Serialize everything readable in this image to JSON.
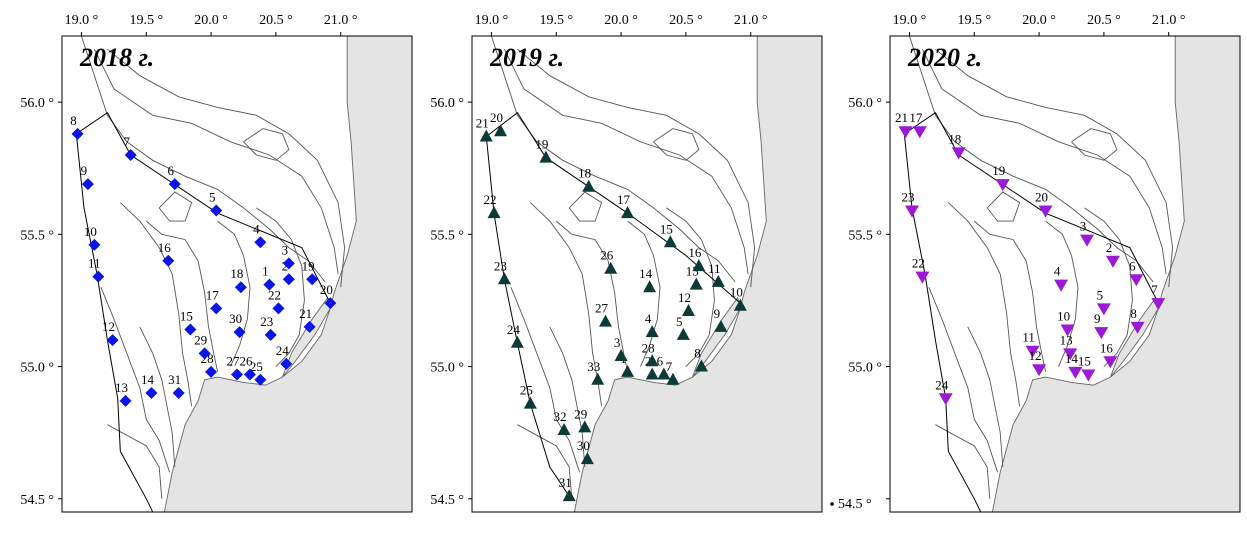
{
  "figure": {
    "stray_tick_label": "54.5 °"
  },
  "colors": {
    "2018": "#0a14e6",
    "2019": "#0d3a36",
    "2020": "#9a1ad6",
    "land": "#e4e4e4"
  },
  "panels": [
    {
      "id": "p2018",
      "year_label": "2018 г.",
      "marker": "diamond",
      "color": "#0a14e6",
      "x_ticks": [
        "19.0 °",
        "19.5 °",
        "20.0 °",
        "20.5 °",
        "21.0 °"
      ],
      "y_ticks": [
        "56.0 °",
        "55.5 °",
        "55.0 °",
        "54.5 °"
      ],
      "stations": [
        {
          "n": "1",
          "lon": 20.45,
          "lat": 55.31
        },
        {
          "n": "2",
          "lon": 20.6,
          "lat": 55.33
        },
        {
          "n": "3",
          "lon": 20.6,
          "lat": 55.39
        },
        {
          "n": "4",
          "lon": 20.38,
          "lat": 55.47
        },
        {
          "n": "5",
          "lon": 20.04,
          "lat": 55.59
        },
        {
          "n": "6",
          "lon": 19.72,
          "lat": 55.69
        },
        {
          "n": "7",
          "lon": 19.38,
          "lat": 55.8
        },
        {
          "n": "8",
          "lon": 18.97,
          "lat": 55.88
        },
        {
          "n": "9",
          "lon": 19.05,
          "lat": 55.69
        },
        {
          "n": "10",
          "lon": 19.1,
          "lat": 55.46
        },
        {
          "n": "11",
          "lon": 19.13,
          "lat": 55.34
        },
        {
          "n": "12",
          "lon": 19.24,
          "lat": 55.1
        },
        {
          "n": "13",
          "lon": 19.34,
          "lat": 54.87
        },
        {
          "n": "14",
          "lon": 19.54,
          "lat": 54.9
        },
        {
          "n": "15",
          "lon": 19.84,
          "lat": 55.14
        },
        {
          "n": "16",
          "lon": 19.67,
          "lat": 55.4
        },
        {
          "n": "17",
          "lon": 20.04,
          "lat": 55.22
        },
        {
          "n": "18",
          "lon": 20.23,
          "lat": 55.3
        },
        {
          "n": "19",
          "lon": 20.78,
          "lat": 55.33
        },
        {
          "n": "20",
          "lon": 20.92,
          "lat": 55.24
        },
        {
          "n": "21",
          "lon": 20.76,
          "lat": 55.15
        },
        {
          "n": "22",
          "lon": 20.52,
          "lat": 55.22
        },
        {
          "n": "23",
          "lon": 20.46,
          "lat": 55.12
        },
        {
          "n": "24",
          "lon": 20.58,
          "lat": 55.01
        },
        {
          "n": "25",
          "lon": 20.38,
          "lat": 54.95
        },
        {
          "n": "26",
          "lon": 20.3,
          "lat": 54.97
        },
        {
          "n": "27",
          "lon": 20.2,
          "lat": 54.97
        },
        {
          "n": "28",
          "lon": 20.0,
          "lat": 54.98
        },
        {
          "n": "29",
          "lon": 19.95,
          "lat": 55.05
        },
        {
          "n": "30",
          "lon": 20.22,
          "lat": 55.13
        },
        {
          "n": "31",
          "lon": 19.75,
          "lat": 54.9
        }
      ]
    },
    {
      "id": "p2019",
      "year_label": "2019 г.",
      "marker": "triangle-up",
      "color": "#0d3a36",
      "x_ticks": [
        "19.0 °",
        "19.5 °",
        "20.0 °",
        "20.5 °",
        "21.0 °"
      ],
      "y_ticks": [
        "56.0 °",
        "55.5 °",
        "55.0 °",
        "54.5 °"
      ],
      "stations": [
        {
          "n": "1",
          "lon": 20.05,
          "lat": 54.98
        },
        {
          "n": "2",
          "lon": 20.24,
          "lat": 54.97
        },
        {
          "n": "3",
          "lon": 20.0,
          "lat": 55.04
        },
        {
          "n": "4",
          "lon": 20.24,
          "lat": 55.13
        },
        {
          "n": "5",
          "lon": 20.48,
          "lat": 55.12
        },
        {
          "n": "6",
          "lon": 20.33,
          "lat": 54.97
        },
        {
          "n": "7",
          "lon": 20.4,
          "lat": 54.95
        },
        {
          "n": "8",
          "lon": 20.62,
          "lat": 55.0
        },
        {
          "n": "9",
          "lon": 20.77,
          "lat": 55.15
        },
        {
          "n": "10",
          "lon": 20.92,
          "lat": 55.23
        },
        {
          "n": "11",
          "lon": 20.75,
          "lat": 55.32
        },
        {
          "n": "12",
          "lon": 20.52,
          "lat": 55.21
        },
        {
          "n": "13",
          "lon": 20.58,
          "lat": 55.31
        },
        {
          "n": "14",
          "lon": 20.22,
          "lat": 55.3
        },
        {
          "n": "15",
          "lon": 20.38,
          "lat": 55.47
        },
        {
          "n": "16",
          "lon": 20.6,
          "lat": 55.38
        },
        {
          "n": "17",
          "lon": 20.05,
          "lat": 55.58
        },
        {
          "n": "18",
          "lon": 19.75,
          "lat": 55.68
        },
        {
          "n": "19",
          "lon": 19.42,
          "lat": 55.79
        },
        {
          "n": "20",
          "lon": 19.07,
          "lat": 55.89
        },
        {
          "n": "21",
          "lon": 18.96,
          "lat": 55.87
        },
        {
          "n": "22",
          "lon": 19.02,
          "lat": 55.58
        },
        {
          "n": "23",
          "lon": 19.1,
          "lat": 55.33
        },
        {
          "n": "24",
          "lon": 19.2,
          "lat": 55.09
        },
        {
          "n": "25",
          "lon": 19.3,
          "lat": 54.86
        },
        {
          "n": "26",
          "lon": 19.92,
          "lat": 55.37
        },
        {
          "n": "27",
          "lon": 19.88,
          "lat": 55.17
        },
        {
          "n": "28",
          "lon": 20.24,
          "lat": 55.02
        },
        {
          "n": "29",
          "lon": 19.72,
          "lat": 54.77
        },
        {
          "n": "30",
          "lon": 19.74,
          "lat": 54.65
        },
        {
          "n": "31",
          "lon": 19.6,
          "lat": 54.51
        },
        {
          "n": "32",
          "lon": 19.56,
          "lat": 54.76
        },
        {
          "n": "33",
          "lon": 19.82,
          "lat": 54.95
        }
      ]
    },
    {
      "id": "p2020",
      "year_label": "2020 г.",
      "marker": "triangle-down",
      "color": "#9a1ad6",
      "x_ticks": [
        "19.0 °",
        "19.5 °",
        "20.0 °",
        "20.5 °",
        "21.0 °"
      ],
      "y_ticks": [
        "56.0 °",
        "55.5 °",
        "55.0 °",
        "54.5 °"
      ],
      "stations": [
        {
          "n": "2",
          "lon": 20.57,
          "lat": 55.4
        },
        {
          "n": "3",
          "lon": 20.37,
          "lat": 55.48
        },
        {
          "n": "4",
          "lon": 20.17,
          "lat": 55.31
        },
        {
          "n": "5",
          "lon": 20.5,
          "lat": 55.22
        },
        {
          "n": "6",
          "lon": 20.75,
          "lat": 55.33
        },
        {
          "n": "7",
          "lon": 20.92,
          "lat": 55.24
        },
        {
          "n": "8",
          "lon": 20.76,
          "lat": 55.15
        },
        {
          "n": "9",
          "lon": 20.48,
          "lat": 55.13
        },
        {
          "n": "10",
          "lon": 20.22,
          "lat": 55.14
        },
        {
          "n": "11",
          "lon": 19.95,
          "lat": 55.06
        },
        {
          "n": "12",
          "lon": 20.0,
          "lat": 54.99
        },
        {
          "n": "13",
          "lon": 20.24,
          "lat": 55.05
        },
        {
          "n": "14",
          "lon": 20.28,
          "lat": 54.98
        },
        {
          "n": "15",
          "lon": 20.38,
          "lat": 54.97
        },
        {
          "n": "16",
          "lon": 20.55,
          "lat": 55.02
        },
        {
          "n": "17",
          "lon": 19.08,
          "lat": 55.89
        },
        {
          "n": "18",
          "lon": 19.38,
          "lat": 55.81
        },
        {
          "n": "19",
          "lon": 19.72,
          "lat": 55.69
        },
        {
          "n": "20",
          "lon": 20.05,
          "lat": 55.59
        },
        {
          "n": "21",
          "lon": 18.97,
          "lat": 55.89
        },
        {
          "n": "22",
          "lon": 19.1,
          "lat": 55.34
        },
        {
          "n": "23",
          "lon": 19.02,
          "lat": 55.59
        },
        {
          "n": "24",
          "lon": 19.28,
          "lat": 54.88
        }
      ]
    }
  ]
}
